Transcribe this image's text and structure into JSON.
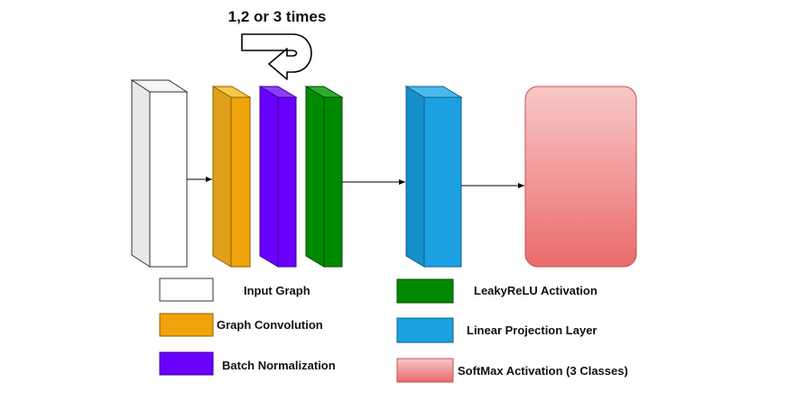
{
  "repeat_label": "1,2 or 3 times",
  "colors": {
    "input": "#ffffff",
    "conv": "#f0a30a",
    "conv_top": "#f7c84a",
    "batchnorm": "#6a00ff",
    "batchnorm_top": "#8c3dff",
    "leakyrelu": "#008a00",
    "leakyrelu_top": "#2eaa2e",
    "linear": "#1ba1e2",
    "linear_top": "#4bb8ec",
    "softmax_top": "#f8c8c8",
    "softmax_bottom": "#ea6b6b"
  },
  "legend": [
    {
      "key": "input",
      "label": "Input Graph"
    },
    {
      "key": "conv",
      "label": "Graph Convolution"
    },
    {
      "key": "batchnorm",
      "label": "Batch Normalization"
    },
    {
      "key": "leakyrelu",
      "label": "LeakyReLU Activation"
    },
    {
      "key": "linear",
      "label": "Linear Projection Layer"
    },
    {
      "key": "softmax",
      "label": "SoftMax Activation (3 Classes)"
    }
  ]
}
